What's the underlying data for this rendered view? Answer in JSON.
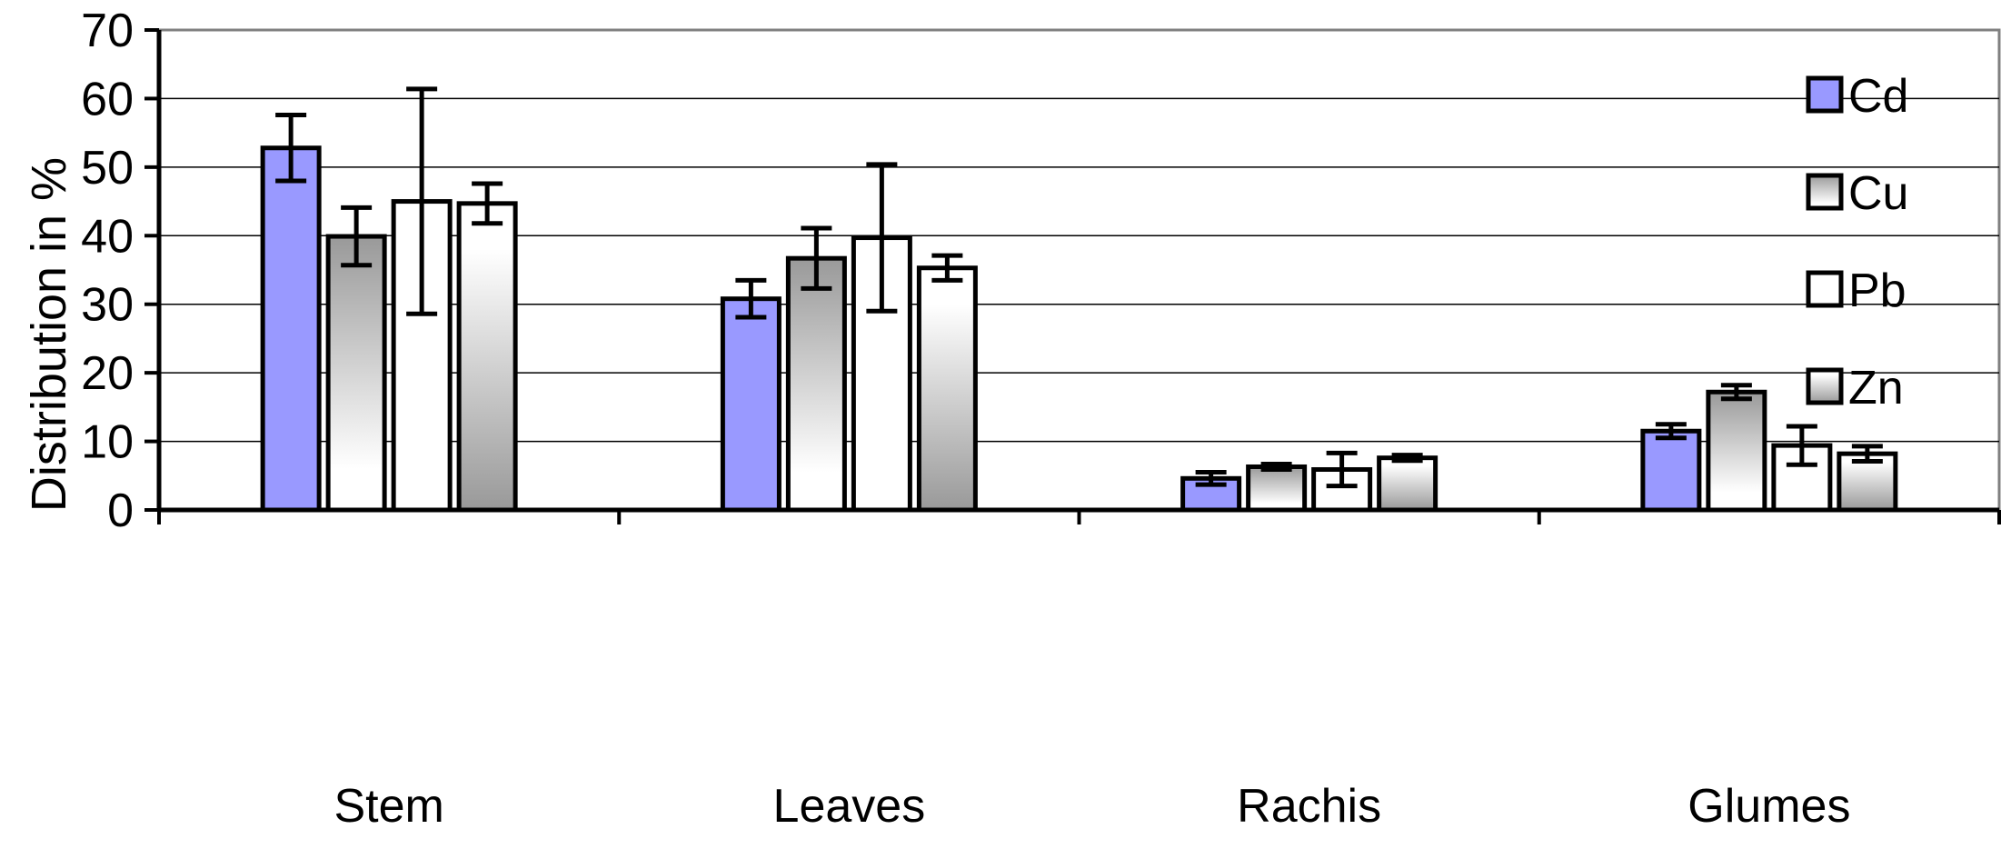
{
  "chart_data": {
    "type": "bar",
    "title": "",
    "xlabel": "",
    "ylabel": "Distribution in %",
    "ylim": [
      0,
      70
    ],
    "yticks": [
      0,
      10,
      20,
      30,
      40,
      50,
      60,
      70
    ],
    "grid": true,
    "legend_position": "top-right",
    "categories": [
      "Stem",
      "Leaves",
      "Rachis",
      "Glumes"
    ],
    "series": [
      {
        "name": "Cd",
        "values": [
          52.8,
          30.8,
          4.6,
          11.5
        ],
        "errors": [
          4.8,
          2.7,
          0.9,
          1.0
        ],
        "fill": "#9999ff",
        "style": "solid"
      },
      {
        "name": "Cu",
        "values": [
          39.9,
          36.7,
          6.3,
          17.2
        ],
        "errors": [
          4.2,
          4.4,
          0.4,
          1.0
        ],
        "fill": "#999999",
        "style": "gradient-down"
      },
      {
        "name": "Pb",
        "values": [
          45.0,
          39.7,
          5.9,
          9.4
        ],
        "errors": [
          16.4,
          10.7,
          2.4,
          2.8
        ],
        "fill": "#ffffff",
        "style": "solid"
      },
      {
        "name": "Zn",
        "values": [
          44.7,
          35.3,
          7.6,
          8.2
        ],
        "errors": [
          2.9,
          1.8,
          0.4,
          1.1
        ],
        "fill": "#999999",
        "style": "gradient-up"
      }
    ]
  }
}
